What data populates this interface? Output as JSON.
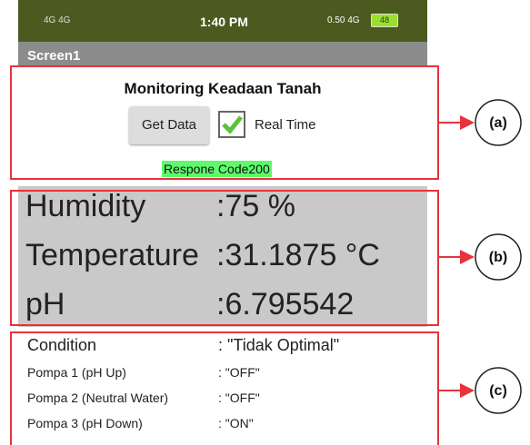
{
  "status_bar": {
    "left": "4G 4G",
    "time": "1:40 PM",
    "right": "0.50 4G",
    "battery": "48"
  },
  "app_bar": {
    "title": "Screen1"
  },
  "section_a": {
    "title": "Monitoring Keadaan Tanah",
    "button": "Get Data",
    "checkbox_label": "Real Time",
    "response": "Respone Code200"
  },
  "section_b": {
    "rows": [
      {
        "label": "Humidity",
        "value": ":75 %"
      },
      {
        "label": "Temperature",
        "value": ":31.1875 °C"
      },
      {
        "label": "pH",
        "value": ":6.795542"
      }
    ]
  },
  "section_c": {
    "rows": [
      {
        "label": "Condition",
        "value": ": \"Tidak Optimal\""
      },
      {
        "label": "Pompa 1 (pH Up)",
        "value": ": \"OFF\""
      },
      {
        "label": "Pompa 2 (Neutral Water)",
        "value": ": \"OFF\""
      },
      {
        "label": "Pompa 3 (pH Down)",
        "value": ": \"ON\""
      }
    ]
  },
  "annotations": [
    "(a)",
    "(b)",
    "(c)"
  ]
}
